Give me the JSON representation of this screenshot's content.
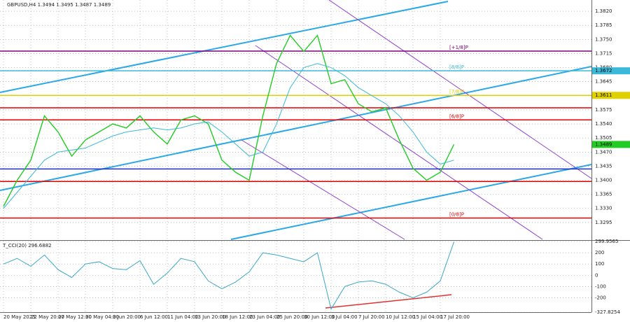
{
  "chart_data": [
    {
      "type": "line",
      "title": "GBPUSD,H4 1.3494 1.3495 1.3487 1.3489",
      "categories": [
        "20 May 2025",
        null,
        "22 May 20:00",
        null,
        "27 May 12:00",
        null,
        "30 May 04:00",
        null,
        "3 Jun 20:00",
        null,
        "6 Jun 12:00",
        null,
        "11 Jun 04:00",
        null,
        "13 Jun 20:00",
        null,
        "18 Jun 12:00",
        null,
        "23 Jun 04:00",
        null,
        "25 Jun 20:00",
        null,
        "30 Jun 12:00",
        null,
        "3 Jul 04:00",
        null,
        "7 Jul 20:00",
        null,
        "10 Jul 12:00",
        null,
        "15 Jul 04:00",
        null,
        "17 Jul 20:00",
        null
      ],
      "series": [
        {
          "color": "#22cc22",
          "values": [
            1.3335,
            1.34,
            1.345,
            1.356,
            1.352,
            1.346,
            1.35,
            1.352,
            1.354,
            1.353,
            1.356,
            1.352,
            1.349,
            1.355,
            1.356,
            1.354,
            1.345,
            1.342,
            1.34,
            1.356,
            1.369,
            1.376,
            1.372,
            1.376,
            1.364,
            1.365,
            1.359,
            1.357,
            1.358,
            1.35,
            1.343,
            1.34,
            1.342,
            1.3489
          ]
        },
        {
          "color": "#3cb8d8",
          "values": [
            1.333,
            1.337,
            1.341,
            1.345,
            1.347,
            1.3475,
            1.348,
            1.3495,
            1.351,
            1.352,
            1.3525,
            1.353,
            1.3525,
            1.353,
            1.354,
            1.3545,
            1.352,
            1.349,
            1.346,
            1.347,
            1.354,
            1.363,
            1.368,
            1.369,
            1.368,
            1.366,
            1.363,
            1.361,
            1.359,
            1.356,
            1.352,
            1.347,
            1.344,
            1.345
          ]
        }
      ],
      "ylim": [
        1.3253,
        1.3848
      ],
      "yticks": [
        {
          "value": 1.382,
          "label": "1.3820"
        },
        1.3785,
        {
          "value": 1.375,
          "label": "1.3750"
        },
        1.3715,
        {
          "value": 1.368,
          "label": "1.3680"
        },
        1.3645,
        {
          "value": 1.361,
          "label": "1.3610"
        },
        1.3575,
        {
          "value": 1.354,
          "label": "1.3540"
        },
        1.3505,
        {
          "value": 1.347,
          "label": "1.3470"
        },
        1.3435,
        {
          "value": 1.34,
          "label": "1.3400"
        },
        1.3365,
        {
          "value": 1.333,
          "label": "1.3330"
        },
        1.3295
      ],
      "grid": true,
      "levels": [
        {
          "value": 1.3721,
          "color": "#800080",
          "label": "[+1/8]P"
        },
        {
          "value": 1.3672,
          "color": "#3cb8d8",
          "label": "[8/8]P",
          "axis_label": true
        },
        {
          "value": 1.3611,
          "color": "#e0d000",
          "label": "[7/8]P",
          "axis_label": true
        },
        {
          "value": 1.358,
          "color": "#e00000"
        },
        {
          "value": 1.355,
          "color": "#e00000",
          "label": "[6/8]P"
        },
        {
          "value": 1.3428,
          "color": "#2030c0"
        },
        {
          "value": 1.3397,
          "color": "#e00000"
        },
        {
          "value": 1.3306,
          "color": "#e00000",
          "label": "[0/8]P"
        }
      ]
    },
    {
      "type": "line",
      "title": "T_CCI(20) 296.6882",
      "series": [
        {
          "color": "#3aa8c8",
          "values": [
            100,
            150,
            80,
            180,
            50,
            -20,
            100,
            120,
            60,
            50,
            130,
            -80,
            20,
            150,
            120,
            -50,
            -120,
            -60,
            30,
            200,
            180,
            150,
            120,
            200,
            -300,
            -100,
            -60,
            -50,
            -80,
            -150,
            -200,
            -150,
            -50,
            296.6882
          ]
        }
      ],
      "ylim": [
        -327.8254,
        299.9565
      ],
      "yticks": [
        299.9565,
        200,
        100,
        0,
        -100,
        -200,
        -327.8254
      ]
    }
  ]
}
